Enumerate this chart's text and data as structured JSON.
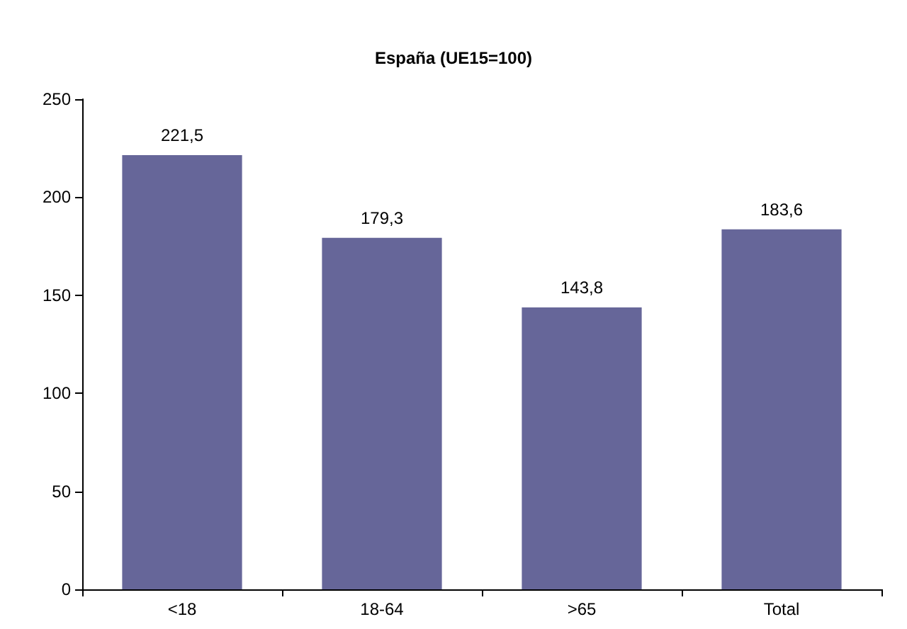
{
  "chart_data": {
    "type": "bar",
    "title": "España (UE15=100)",
    "categories": [
      "<18",
      "18-64",
      ">65",
      "Total"
    ],
    "values": [
      221.5,
      179.3,
      143.8,
      183.6
    ],
    "value_labels": [
      "221,5",
      "179,3",
      "143,8",
      "183,6"
    ],
    "color": "#666699",
    "ylim": [
      0,
      250
    ],
    "yticks": [
      0,
      50,
      100,
      150,
      200,
      250
    ],
    "grid": false
  }
}
